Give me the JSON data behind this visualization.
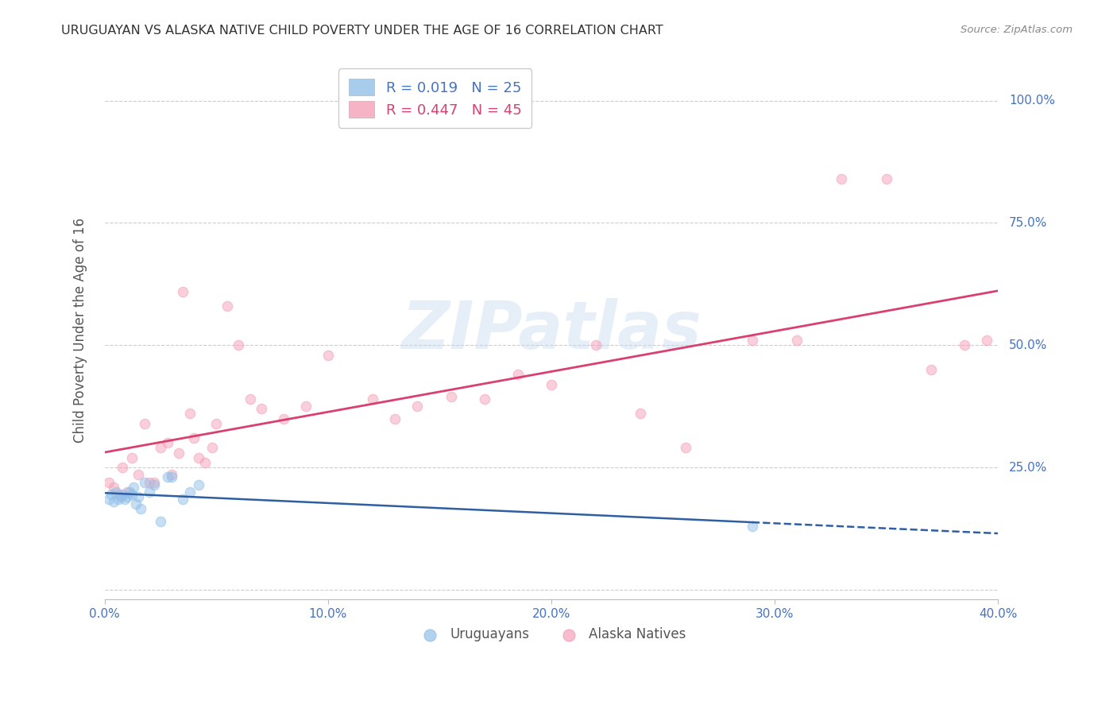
{
  "title": "URUGUAYAN VS ALASKA NATIVE CHILD POVERTY UNDER THE AGE OF 16 CORRELATION CHART",
  "source": "Source: ZipAtlas.com",
  "ylabel": "Child Poverty Under the Age of 16",
  "xlim": [
    0.0,
    0.4
  ],
  "ylim": [
    -0.02,
    1.08
  ],
  "yticks": [
    0.0,
    0.25,
    0.5,
    0.75,
    1.0
  ],
  "ytick_labels": [
    "",
    "25.0%",
    "50.0%",
    "75.0%",
    "100.0%"
  ],
  "xticks": [
    0.0,
    0.1,
    0.2,
    0.3,
    0.4
  ],
  "xtick_labels": [
    "0.0%",
    "10.0%",
    "20.0%",
    "30.0%",
    "40.0%"
  ],
  "uruguayan_color": "#92C0E8",
  "alaska_color": "#F4A0B8",
  "trendline_uruguayan_color": "#2E5FA3",
  "trendline_alaska_color": "#D94070",
  "watermark": "ZIPatlas",
  "uruguayan_x": [
    0.002,
    0.003,
    0.004,
    0.005,
    0.006,
    0.007,
    0.008,
    0.009,
    0.01,
    0.011,
    0.012,
    0.013,
    0.014,
    0.015,
    0.016,
    0.018,
    0.02,
    0.022,
    0.025,
    0.028,
    0.03,
    0.035,
    0.038,
    0.042,
    0.29
  ],
  "uruguayan_y": [
    0.185,
    0.195,
    0.18,
    0.2,
    0.185,
    0.19,
    0.195,
    0.185,
    0.19,
    0.2,
    0.195,
    0.21,
    0.175,
    0.19,
    0.165,
    0.22,
    0.2,
    0.215,
    0.14,
    0.23,
    0.23,
    0.185,
    0.2,
    0.215,
    0.13
  ],
  "alaska_x": [
    0.002,
    0.004,
    0.006,
    0.008,
    0.01,
    0.012,
    0.015,
    0.018,
    0.02,
    0.022,
    0.025,
    0.028,
    0.03,
    0.033,
    0.035,
    0.038,
    0.04,
    0.042,
    0.045,
    0.048,
    0.05,
    0.055,
    0.06,
    0.065,
    0.07,
    0.08,
    0.09,
    0.1,
    0.12,
    0.13,
    0.14,
    0.155,
    0.17,
    0.185,
    0.2,
    0.22,
    0.24,
    0.26,
    0.29,
    0.31,
    0.33,
    0.35,
    0.37,
    0.385,
    0.395
  ],
  "alaska_y": [
    0.22,
    0.21,
    0.195,
    0.25,
    0.2,
    0.27,
    0.235,
    0.34,
    0.22,
    0.22,
    0.29,
    0.3,
    0.235,
    0.28,
    0.61,
    0.36,
    0.31,
    0.27,
    0.26,
    0.29,
    0.34,
    0.58,
    0.5,
    0.39,
    0.37,
    0.35,
    0.375,
    0.48,
    0.39,
    0.35,
    0.375,
    0.395,
    0.39,
    0.44,
    0.42,
    0.5,
    0.36,
    0.29,
    0.51,
    0.51,
    0.84,
    0.84,
    0.45,
    0.5,
    0.51
  ],
  "background_color": "#FFFFFF",
  "grid_color": "#CCCCCC",
  "title_color": "#333333",
  "axis_label_color": "#555555",
  "tick_color": "#4472C4",
  "marker_size": 80,
  "marker_alpha": 0.5,
  "marker_linewidth": 1.0,
  "trendline_uru_x_solid_end": 0.29,
  "trendline_uru_x_dashed_start": 0.29,
  "trendline_uru_x_dashed_end": 0.4
}
